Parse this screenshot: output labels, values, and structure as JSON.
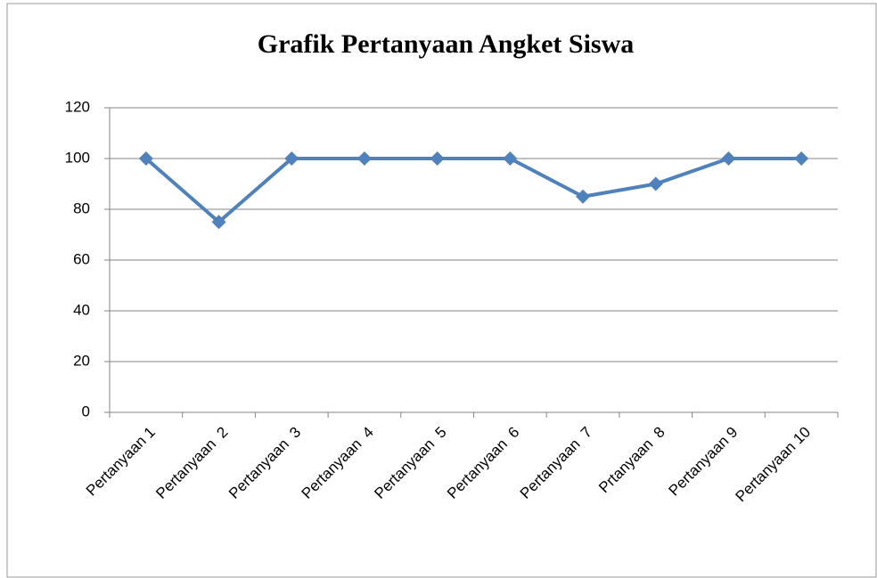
{
  "chart_data": {
    "type": "line",
    "title": "Grafik Pertanyaan Angket Siswa",
    "categories": [
      "Pertanyaan 1",
      "Pertanyaan  2",
      "Pertanyaan  3",
      "Pertanyaan  4",
      "Pertanyaan  5",
      "Pertanyaan  6",
      "Pertanyaan  7",
      "Prtanyaan  8",
      "Pertanyaan 9",
      "Pertanyaan 10"
    ],
    "series": [
      {
        "color": "#4f81bd",
        "values": [
          100,
          75,
          100,
          100,
          100,
          100,
          85,
          90,
          100,
          100
        ]
      }
    ],
    "ylim": [
      0,
      120
    ],
    "yticks": [
      0,
      20,
      40,
      60,
      80,
      100,
      120
    ],
    "grid": true
  }
}
